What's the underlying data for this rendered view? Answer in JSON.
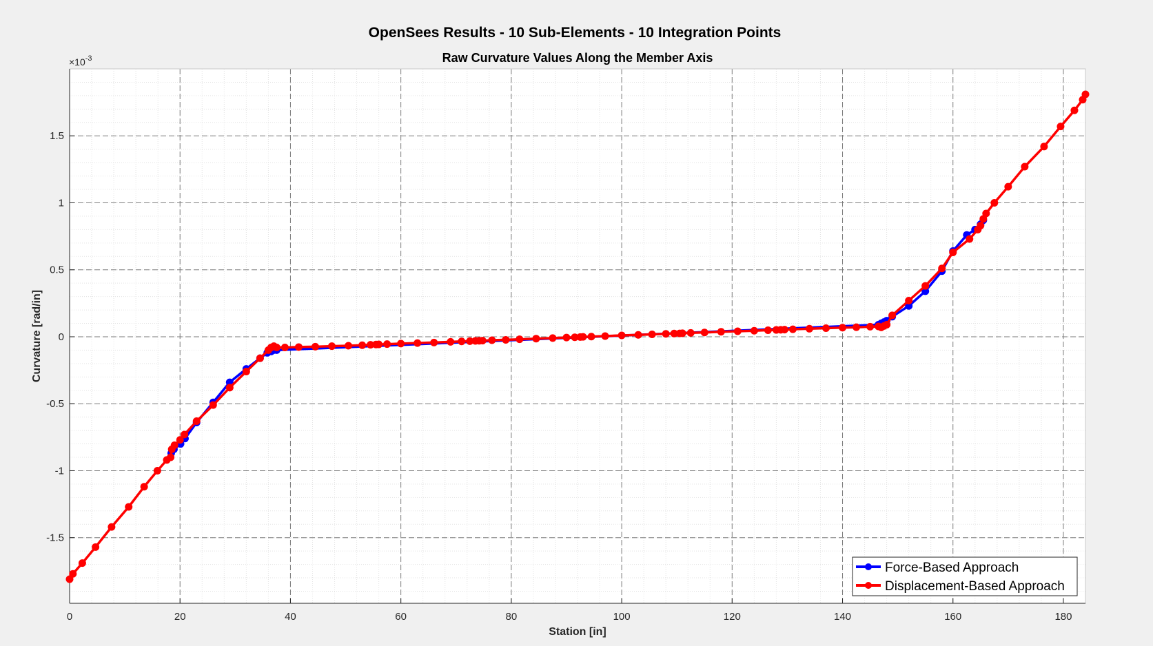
{
  "chart_data": {
    "type": "line",
    "title": "OpenSees Results - 10 Sub-Elements - 10 Integration Points",
    "subtitle": "Raw Curvature Values Along the Member Axis",
    "xlabel": "Station [in]",
    "ylabel": "Curvature [rad/in]",
    "y_exponent_label": "×10",
    "y_exponent_power": "-3",
    "y_unit_multiplier": 0.001,
    "xlim": [
      0,
      184
    ],
    "ylim": [
      -1.99,
      2.0
    ],
    "x_ticks": [
      0,
      20,
      40,
      60,
      80,
      100,
      120,
      140,
      160,
      180
    ],
    "x_tick_labels": [
      "0",
      "20",
      "40",
      "60",
      "80",
      "100",
      "120",
      "140",
      "160",
      "180"
    ],
    "y_ticks": [
      -1.5,
      -1,
      -0.5,
      0,
      0.5,
      1,
      1.5
    ],
    "y_tick_labels": [
      "-1.5",
      "-1",
      "-0.5",
      "0",
      "0.5",
      "1",
      "1.5"
    ],
    "grid": true,
    "minor_grid": true,
    "legend_position": "bottom-right",
    "series": [
      {
        "name": "Force-Based Approach",
        "color": "#0000ff",
        "x": [
          18.4,
          18.9,
          20.1,
          20.9,
          23.0,
          26.0,
          29.0,
          32.0,
          34.5,
          35.8,
          36.5,
          37.0,
          37.5,
          146.5,
          147.0,
          147.5,
          148.0,
          149.0,
          152.0,
          155.0,
          158.0,
          160.0,
          162.5,
          164.0,
          165.0,
          165.5
        ],
        "y": [
          -0.87,
          -0.84,
          -0.8,
          -0.76,
          -0.64,
          -0.49,
          -0.34,
          -0.24,
          -0.16,
          -0.12,
          -0.11,
          -0.1,
          -0.1,
          0.09,
          0.1,
          0.11,
          0.12,
          0.15,
          0.23,
          0.34,
          0.49,
          0.64,
          0.76,
          0.8,
          0.84,
          0.87
        ]
      },
      {
        "name": "Displacement-Based Approach",
        "color": "#ff0000",
        "x": [
          0,
          0.6,
          2.3,
          4.7,
          7.6,
          10.7,
          13.5,
          15.9,
          17.6,
          18.3,
          18.5,
          19.0,
          20.0,
          20.8,
          23.0,
          26.0,
          29.0,
          32.0,
          34.5,
          36.0,
          36.5,
          37.0,
          37.5,
          39.0,
          41.5,
          44.5,
          47.5,
          50.5,
          53.0,
          54.5,
          55.5,
          56.0,
          57.5,
          60.0,
          63.0,
          66.0,
          69.0,
          71.0,
          72.5,
          73.5,
          74.2,
          74.8,
          76.5,
          79.0,
          81.5,
          84.5,
          87.5,
          90.0,
          91.5,
          92.5,
          93.0,
          94.5,
          97.0,
          100.0,
          103.0,
          105.5,
          108.0,
          109.5,
          110.5,
          111.0,
          112.5,
          115.0,
          118.0,
          121.0,
          124.0,
          126.5,
          128.0,
          128.8,
          129.5,
          131.0,
          134.0,
          137.0,
          140.0,
          142.5,
          145.0,
          146.5,
          147.0,
          147.5,
          148.0,
          149.0,
          152.0,
          155.0,
          158.0,
          160.0,
          163.0,
          164.5,
          165.0,
          165.5,
          166.0,
          167.5,
          170.0,
          173.0,
          176.5,
          179.5,
          182.0,
          183.5,
          184.0
        ],
        "y": [
          -1.81,
          -1.77,
          -1.69,
          -1.57,
          -1.42,
          -1.27,
          -1.12,
          -1.0,
          -0.92,
          -0.9,
          -0.84,
          -0.81,
          -0.77,
          -0.73,
          -0.63,
          -0.51,
          -0.38,
          -0.26,
          -0.16,
          -0.1,
          -0.08,
          -0.07,
          -0.08,
          -0.08,
          -0.077,
          -0.074,
          -0.07,
          -0.067,
          -0.063,
          -0.06,
          -0.058,
          -0.057,
          -0.055,
          -0.051,
          -0.047,
          -0.043,
          -0.038,
          -0.035,
          -0.033,
          -0.031,
          -0.03,
          -0.029,
          -0.026,
          -0.023,
          -0.019,
          -0.014,
          -0.01,
          -0.006,
          -0.004,
          -0.002,
          -0.001,
          0.001,
          0.005,
          0.01,
          0.014,
          0.018,
          0.022,
          0.024,
          0.025,
          0.026,
          0.029,
          0.032,
          0.037,
          0.041,
          0.045,
          0.049,
          0.051,
          0.052,
          0.053,
          0.056,
          0.06,
          0.064,
          0.068,
          0.071,
          0.075,
          0.077,
          0.07,
          0.08,
          0.09,
          0.16,
          0.27,
          0.38,
          0.51,
          0.63,
          0.73,
          0.8,
          0.83,
          0.88,
          0.92,
          1.0,
          1.12,
          1.27,
          1.42,
          1.57,
          1.69,
          1.77,
          1.81
        ]
      }
    ]
  }
}
